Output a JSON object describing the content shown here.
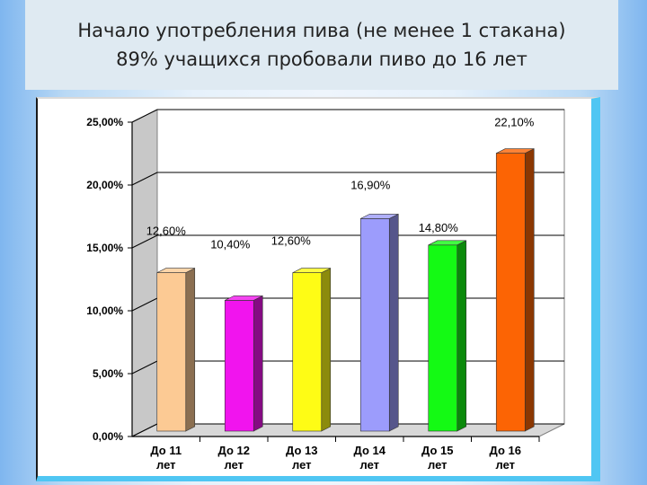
{
  "header": {
    "title_line1": "Начало употребления пива (не менее 1 стакана)",
    "title_line2": "89% учащихся пробовали пиво до 16 лет"
  },
  "chart_data": {
    "type": "bar",
    "title": "",
    "xlabel": "",
    "ylabel": "",
    "ylim": [
      0,
      25
    ],
    "grid": true,
    "categories": [
      [
        "До 11",
        "лет"
      ],
      [
        "До 12",
        "лет"
      ],
      [
        "До 13",
        "лет"
      ],
      [
        "До 14",
        "лет"
      ],
      [
        "До 15",
        "лет"
      ],
      [
        "До 16",
        "лет"
      ]
    ],
    "values": [
      12.6,
      10.4,
      12.6,
      16.9,
      14.8,
      22.1
    ],
    "data_labels": [
      "12,60%",
      "10,40%",
      "12,60%",
      "16,90%",
      "14,80%",
      "22,10%"
    ],
    "y_ticks": [
      0,
      5,
      10,
      15,
      20,
      25
    ],
    "y_tick_labels": [
      "0,00%",
      "5,00%",
      "10,00%",
      "15,00%",
      "20,00%",
      "25,00%"
    ],
    "colors": [
      "#fcca94",
      "#f114ee",
      "#fefc15",
      "#9c9cfc",
      "#14fa14",
      "#fc6404"
    ]
  }
}
